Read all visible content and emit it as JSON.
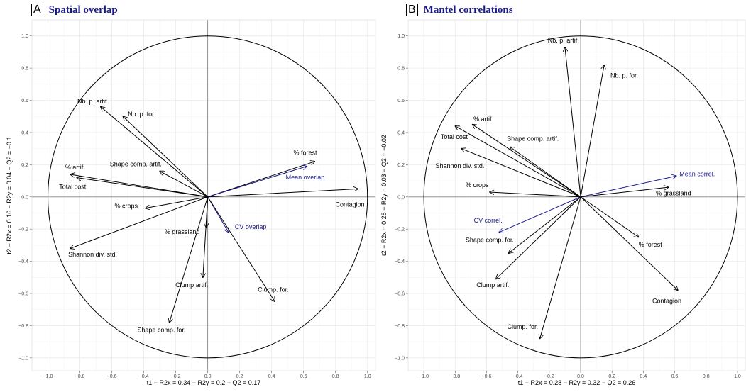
{
  "colors": {
    "variable": "#000000",
    "response": "#1a1a8c",
    "grid": "#ebebeb",
    "axis": "#888888"
  },
  "chart_data": [
    {
      "type": "scatter",
      "subtype": "correlation-circle",
      "panel_letter": "A",
      "title": "Spatial overlap",
      "xlabel": "t1 − R2x = 0.34 − R2y = 0.2 − Q2 = 0.17",
      "ylabel": "t2 − R2x = 0.16 − R2y = 0.04 − Q2 = −0.1",
      "xlim": [
        -1.1,
        1.05
      ],
      "ylim": [
        -1.08,
        1.1
      ],
      "xticks": [
        -1.0,
        -0.8,
        -0.6,
        -0.4,
        -0.2,
        0.0,
        0.2,
        0.4,
        0.6,
        0.8,
        1.0
      ],
      "yticks": [
        -1.0,
        -0.8,
        -0.6,
        -0.4,
        -0.2,
        0.0,
        0.2,
        0.4,
        0.6,
        0.8,
        1.0
      ],
      "xtick_labels": [
        "−1.0",
        "−0.8",
        "−0.6",
        "−0.4",
        "−0.2",
        "0.0",
        "0.2",
        "0.4",
        "0.6",
        "0.8",
        "1.0"
      ],
      "ytick_labels": [
        "−1.0",
        "−0.8",
        "−0.6",
        "−0.4",
        "−0.2",
        "0.0",
        "0.2",
        "0.4",
        "0.6",
        "0.8",
        "1.0"
      ],
      "grid": true,
      "unit_circle": true,
      "arrows": [
        {
          "label": "Nb. p. artif.",
          "x": -0.67,
          "y": 0.56,
          "group": "variable",
          "anchor": "end",
          "lx": -0.62,
          "ly": 0.58
        },
        {
          "label": "Nb. p. for.",
          "x": -0.53,
          "y": 0.5,
          "group": "variable",
          "anchor": "start",
          "lx": -0.5,
          "ly": 0.5
        },
        {
          "label": "% forest",
          "x": 0.67,
          "y": 0.22,
          "group": "variable",
          "anchor": "middle",
          "lx": 0.61,
          "ly": 0.26
        },
        {
          "label": "Mean overlap",
          "x": 0.62,
          "y": 0.19,
          "group": "response",
          "anchor": "middle",
          "lx": 0.61,
          "ly": 0.11
        },
        {
          "label": "Shape comp. artif.",
          "x": -0.3,
          "y": 0.16,
          "group": "variable",
          "anchor": "middle",
          "lx": -0.45,
          "ly": 0.19
        },
        {
          "label": "% artif.",
          "x": -0.86,
          "y": 0.14,
          "group": "variable",
          "anchor": "middle",
          "lx": -0.83,
          "ly": 0.17
        },
        {
          "label": "Total cost",
          "x": -0.82,
          "y": 0.12,
          "group": "variable",
          "anchor": "start",
          "lx": -0.93,
          "ly": 0.05
        },
        {
          "label": "Contagion",
          "x": 0.94,
          "y": 0.05,
          "group": "variable",
          "anchor": "middle",
          "lx": 0.89,
          "ly": -0.06
        },
        {
          "label": "% crops",
          "x": -0.39,
          "y": -0.07,
          "group": "variable",
          "anchor": "middle",
          "lx": -0.51,
          "ly": -0.07
        },
        {
          "label": "% grassland",
          "x": -0.01,
          "y": -0.19,
          "group": "variable",
          "anchor": "middle",
          "lx": -0.16,
          "ly": -0.23
        },
        {
          "label": "CV overlap",
          "x": 0.13,
          "y": -0.22,
          "group": "response",
          "anchor": "start",
          "lx": 0.17,
          "ly": -0.2
        },
        {
          "label": "Shannon div. std.",
          "x": -0.86,
          "y": -0.32,
          "group": "variable",
          "anchor": "middle",
          "lx": -0.72,
          "ly": -0.37
        },
        {
          "label": "Clump artif.",
          "x": -0.03,
          "y": -0.5,
          "group": "variable",
          "anchor": "middle",
          "lx": -0.1,
          "ly": -0.56
        },
        {
          "label": "Clump. for.",
          "x": 0.42,
          "y": -0.65,
          "group": "variable",
          "anchor": "middle",
          "lx": 0.41,
          "ly": -0.59
        },
        {
          "label": "Shape comp. for.",
          "x": -0.24,
          "y": -0.78,
          "group": "variable",
          "anchor": "middle",
          "lx": -0.29,
          "ly": -0.84
        }
      ]
    },
    {
      "type": "scatter",
      "subtype": "correlation-circle",
      "panel_letter": "B",
      "title": "Mantel correlations",
      "xlabel": "t1 − R2x = 0.28 − R2y = 0.32 − Q2 = 0.26",
      "ylabel": "t2 − R2x = 0.28 − R2y = 0.03 − Q2 = −0.02",
      "xlim": [
        -1.1,
        1.05
      ],
      "ylim": [
        -1.08,
        1.1
      ],
      "xticks": [
        -1.0,
        -0.8,
        -0.6,
        -0.4,
        -0.2,
        0.0,
        0.2,
        0.4,
        0.6,
        0.8,
        1.0
      ],
      "yticks": [
        -1.0,
        -0.8,
        -0.6,
        -0.4,
        -0.2,
        0.0,
        0.2,
        0.4,
        0.6,
        0.8,
        1.0
      ],
      "xtick_labels": [
        "−1.0",
        "−0.8",
        "−0.6",
        "−0.4",
        "−0.2",
        "0.0",
        "0.2",
        "0.4",
        "0.6",
        "0.8",
        "1.0"
      ],
      "ytick_labels": [
        "−1.0",
        "−0.8",
        "−0.6",
        "−0.4",
        "−0.2",
        "0.0",
        "0.2",
        "0.4",
        "0.6",
        "0.8",
        "1.0"
      ],
      "grid": true,
      "unit_circle": true,
      "arrows": [
        {
          "label": "Nb. p. artif.",
          "x": -0.1,
          "y": 0.93,
          "group": "variable",
          "anchor": "middle",
          "lx": -0.11,
          "ly": 0.96
        },
        {
          "label": "Nb. p. for.",
          "x": 0.15,
          "y": 0.82,
          "group": "variable",
          "anchor": "start",
          "lx": 0.19,
          "ly": 0.74
        },
        {
          "label": "% artif.",
          "x": -0.69,
          "y": 0.45,
          "group": "variable",
          "anchor": "middle",
          "lx": -0.62,
          "ly": 0.47
        },
        {
          "label": "Total cost",
          "x": -0.8,
          "y": 0.44,
          "group": "variable",
          "anchor": "end",
          "lx": -0.72,
          "ly": 0.36
        },
        {
          "label": "Shape comp. artif.",
          "x": -0.45,
          "y": 0.31,
          "group": "variable",
          "anchor": "start",
          "lx": -0.47,
          "ly": 0.35
        },
        {
          "label": "Shannon div. std.",
          "x": -0.76,
          "y": 0.3,
          "group": "variable",
          "anchor": "middle",
          "lx": -0.77,
          "ly": 0.18
        },
        {
          "label": "Mean correl.",
          "x": 0.61,
          "y": 0.13,
          "group": "response",
          "anchor": "start",
          "lx": 0.63,
          "ly": 0.13
        },
        {
          "label": "% grassland",
          "x": 0.56,
          "y": 0.06,
          "group": "variable",
          "anchor": "start",
          "lx": 0.48,
          "ly": 0.01
        },
        {
          "label": "% crops",
          "x": -0.58,
          "y": 0.03,
          "group": "variable",
          "anchor": "middle",
          "lx": -0.66,
          "ly": 0.06
        },
        {
          "label": "CV correl.",
          "x": -0.52,
          "y": -0.22,
          "group": "response",
          "anchor": "middle",
          "lx": -0.59,
          "ly": -0.16
        },
        {
          "label": "% forest",
          "x": 0.37,
          "y": -0.25,
          "group": "variable",
          "anchor": "start",
          "lx": 0.37,
          "ly": -0.31
        },
        {
          "label": "Shape comp. for.",
          "x": -0.46,
          "y": -0.35,
          "group": "variable",
          "anchor": "middle",
          "lx": -0.58,
          "ly": -0.28
        },
        {
          "label": "Clump artif.",
          "x": -0.54,
          "y": -0.51,
          "group": "variable",
          "anchor": "middle",
          "lx": -0.56,
          "ly": -0.56
        },
        {
          "label": "Contagion",
          "x": 0.62,
          "y": -0.58,
          "group": "variable",
          "anchor": "middle",
          "lx": 0.55,
          "ly": -0.66
        },
        {
          "label": "Clump. for.",
          "x": -0.26,
          "y": -0.88,
          "group": "variable",
          "anchor": "middle",
          "lx": -0.37,
          "ly": -0.82
        }
      ]
    }
  ]
}
